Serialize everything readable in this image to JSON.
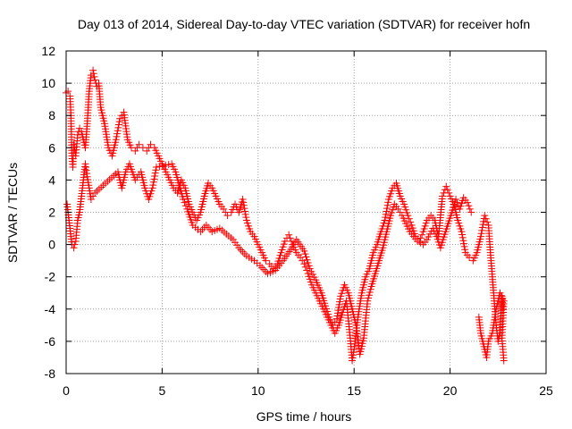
{
  "chart_data": {
    "type": "scatter",
    "title": "Day 013 of 2014, Sidereal Day-to-day VTEC variation (SDTVAR) for receiver hofn",
    "xlabel": "GPS time / hours",
    "ylabel": "SDTVAR / TECUs",
    "xlim": [
      0,
      25
    ],
    "ylim": [
      -8,
      12
    ],
    "xticks": [
      0,
      5,
      10,
      15,
      20,
      25
    ],
    "yticks": [
      -8,
      -6,
      -4,
      -2,
      0,
      2,
      4,
      6,
      8,
      10,
      12
    ],
    "grid": true,
    "marker": "+",
    "series": [
      {
        "name": "SDTVAR",
        "color": "#ff0000",
        "points": [
          [
            0.0,
            9.4
          ],
          [
            0.1,
            9.5
          ],
          [
            0.2,
            9.2
          ],
          [
            0.25,
            8.0
          ],
          [
            0.3,
            5.5
          ],
          [
            0.35,
            4.8
          ],
          [
            0.4,
            6.2
          ],
          [
            0.5,
            5.5
          ],
          [
            0.6,
            6.8
          ],
          [
            0.7,
            7.2
          ],
          [
            0.8,
            7.0
          ],
          [
            0.9,
            6.5
          ],
          [
            1.0,
            6.0
          ],
          [
            1.1,
            7.5
          ],
          [
            1.2,
            9.5
          ],
          [
            1.3,
            10.5
          ],
          [
            1.4,
            10.8
          ],
          [
            1.5,
            10.2
          ],
          [
            1.6,
            9.8
          ],
          [
            1.7,
            10.0
          ],
          [
            1.8,
            8.5
          ],
          [
            2.0,
            7.5
          ],
          [
            2.2,
            6.0
          ],
          [
            2.4,
            5.5
          ],
          [
            2.6,
            6.5
          ],
          [
            2.8,
            7.8
          ],
          [
            3.0,
            8.2
          ],
          [
            3.2,
            6.5
          ],
          [
            3.4,
            6.0
          ],
          [
            3.6,
            5.8
          ],
          [
            3.8,
            6.2
          ],
          [
            4.0,
            6.0
          ],
          [
            4.2,
            5.8
          ],
          [
            4.4,
            6.2
          ],
          [
            4.6,
            6.0
          ],
          [
            4.8,
            5.5
          ],
          [
            5.0,
            5.0
          ],
          [
            5.2,
            4.5
          ],
          [
            5.4,
            4.0
          ],
          [
            5.6,
            3.5
          ],
          [
            5.8,
            3.2
          ],
          [
            6.0,
            4.0
          ],
          [
            6.2,
            3.5
          ],
          [
            6.4,
            2.5
          ],
          [
            6.6,
            2.0
          ],
          [
            6.8,
            1.5
          ],
          [
            7.0,
            2.0
          ],
          [
            7.2,
            3.0
          ],
          [
            7.4,
            3.8
          ],
          [
            7.6,
            3.5
          ],
          [
            7.8,
            3.0
          ],
          [
            8.0,
            2.5
          ],
          [
            8.2,
            2.2
          ],
          [
            8.4,
            1.8
          ],
          [
            8.6,
            2.0
          ],
          [
            8.8,
            2.5
          ],
          [
            9.0,
            2.0
          ],
          [
            9.2,
            2.8
          ],
          [
            9.4,
            1.5
          ],
          [
            9.6,
            0.8
          ],
          [
            9.8,
            0.5
          ],
          [
            10.0,
            0.0
          ],
          [
            10.2,
            -0.5
          ],
          [
            10.4,
            -1.0
          ],
          [
            10.6,
            -1.2
          ],
          [
            10.8,
            -1.5
          ],
          [
            11.0,
            -1.2
          ],
          [
            11.2,
            -0.5
          ],
          [
            11.4,
            0.2
          ],
          [
            11.6,
            0.6
          ],
          [
            11.8,
            0.0
          ],
          [
            12.0,
            -0.5
          ],
          [
            12.2,
            -0.8
          ],
          [
            12.4,
            -1.2
          ],
          [
            12.6,
            -1.8
          ],
          [
            12.8,
            -2.5
          ],
          [
            13.0,
            -3.0
          ],
          [
            13.2,
            -3.5
          ],
          [
            13.4,
            -4.0
          ],
          [
            13.6,
            -4.5
          ],
          [
            13.8,
            -5.0
          ],
          [
            14.0,
            -5.5
          ],
          [
            14.2,
            -5.0
          ],
          [
            14.4,
            -4.2
          ],
          [
            14.6,
            -3.5
          ],
          [
            14.8,
            -5.8
          ],
          [
            14.9,
            -7.2
          ],
          [
            15.0,
            -6.5
          ],
          [
            15.2,
            -4.5
          ],
          [
            15.4,
            -3.0
          ],
          [
            15.6,
            -2.0
          ],
          [
            15.8,
            -1.5
          ],
          [
            16.0,
            -0.5
          ],
          [
            16.2,
            0.0
          ],
          [
            16.4,
            0.8
          ],
          [
            16.6,
            1.5
          ],
          [
            16.8,
            2.8
          ],
          [
            17.0,
            3.5
          ],
          [
            17.2,
            3.8
          ],
          [
            17.4,
            3.0
          ],
          [
            17.6,
            2.5
          ],
          [
            17.8,
            1.8
          ],
          [
            18.0,
            1.2
          ],
          [
            18.2,
            0.5
          ],
          [
            18.4,
            0.2
          ],
          [
            18.6,
            0.8
          ],
          [
            18.8,
            1.5
          ],
          [
            19.0,
            1.8
          ],
          [
            19.2,
            1.5
          ],
          [
            19.4,
            0.5
          ],
          [
            19.6,
            3.0
          ],
          [
            19.8,
            3.6
          ],
          [
            20.0,
            3.0
          ],
          [
            20.2,
            2.5
          ],
          [
            20.4,
            1.5
          ],
          [
            20.6,
            0.8
          ],
          [
            20.8,
            -0.5
          ],
          [
            21.0,
            -0.8
          ],
          [
            21.2,
            -1.0
          ],
          [
            21.4,
            -0.5
          ],
          [
            21.6,
            0.5
          ],
          [
            21.8,
            1.8
          ],
          [
            22.0,
            1.2
          ],
          [
            22.1,
            -0.5
          ],
          [
            22.2,
            -2.0
          ],
          [
            22.3,
            -3.5
          ],
          [
            22.4,
            -5.0
          ],
          [
            22.5,
            -6.0
          ],
          [
            22.6,
            -5.5
          ],
          [
            22.7,
            -3.2
          ],
          [
            22.75,
            -4.0
          ],
          [
            0.05,
            2.5
          ],
          [
            0.2,
            1.0
          ],
          [
            0.3,
            0.0
          ],
          [
            0.4,
            -0.2
          ],
          [
            0.5,
            0.2
          ],
          [
            0.6,
            1.5
          ],
          [
            0.7,
            2.0
          ],
          [
            0.8,
            3.0
          ],
          [
            0.9,
            4.0
          ],
          [
            1.0,
            5.0
          ],
          [
            1.1,
            4.2
          ],
          [
            1.2,
            3.5
          ],
          [
            1.3,
            2.8
          ],
          [
            1.5,
            3.2
          ],
          [
            2.7,
            4.5
          ],
          [
            2.8,
            4.0
          ],
          [
            2.9,
            3.5
          ],
          [
            3.1,
            4.5
          ],
          [
            3.3,
            5.0
          ],
          [
            3.6,
            4.0
          ],
          [
            3.9,
            4.5
          ],
          [
            4.1,
            3.5
          ],
          [
            4.3,
            2.8
          ],
          [
            4.5,
            3.5
          ],
          [
            4.7,
            4.8
          ],
          [
            5.5,
            5.0
          ],
          [
            5.7,
            4.5
          ],
          [
            6.1,
            2.8
          ],
          [
            6.3,
            2.2
          ],
          [
            6.6,
            1.2
          ],
          [
            7.0,
            0.8
          ],
          [
            7.3,
            1.2
          ],
          [
            7.6,
            0.8
          ],
          [
            8.0,
            1.0
          ],
          [
            8.7,
            0.3
          ],
          [
            9.0,
            -0.2
          ],
          [
            9.4,
            -0.7
          ],
          [
            9.8,
            -1.0
          ],
          [
            10.1,
            -1.3
          ],
          [
            10.5,
            -1.8
          ],
          [
            10.9,
            -1.6
          ],
          [
            11.3,
            -1.0
          ],
          [
            11.7,
            -0.3
          ],
          [
            12.0,
            0.3
          ],
          [
            12.4,
            -0.4
          ],
          [
            12.7,
            -1.5
          ],
          [
            13.0,
            -2.2
          ],
          [
            13.3,
            -3.0
          ],
          [
            13.5,
            -3.8
          ],
          [
            13.7,
            -4.5
          ],
          [
            13.9,
            -5.0
          ],
          [
            14.1,
            -4.6
          ],
          [
            14.3,
            -3.2
          ],
          [
            14.5,
            -2.5
          ],
          [
            14.7,
            -3.0
          ],
          [
            14.9,
            -4.0
          ],
          [
            15.1,
            -5.0
          ],
          [
            15.3,
            -6.8
          ],
          [
            15.5,
            -5.8
          ],
          [
            15.7,
            -3.5
          ],
          [
            15.9,
            -2.6
          ],
          [
            16.1,
            -1.8
          ],
          [
            16.3,
            -1.0
          ],
          [
            16.5,
            -0.2
          ],
          [
            16.7,
            0.8
          ],
          [
            16.9,
            1.8
          ],
          [
            17.1,
            2.5
          ],
          [
            17.3,
            2.2
          ],
          [
            17.5,
            1.8
          ],
          [
            17.7,
            1.3
          ],
          [
            17.9,
            0.8
          ],
          [
            18.1,
            0.5
          ],
          [
            18.3,
            0.2
          ],
          [
            18.6,
            0.0
          ],
          [
            18.8,
            0.3
          ],
          [
            19.1,
            1.0
          ],
          [
            19.3,
            0.5
          ],
          [
            19.5,
            -0.2
          ],
          [
            20.3,
            2.8
          ],
          [
            20.5,
            2.2
          ],
          [
            20.7,
            2.9
          ],
          [
            20.9,
            2.6
          ],
          [
            21.1,
            2.0
          ],
          [
            21.5,
            -4.5
          ],
          [
            21.6,
            -5.5
          ],
          [
            21.7,
            -6.0
          ],
          [
            21.8,
            -6.5
          ],
          [
            21.9,
            -7.0
          ],
          [
            22.0,
            -6.0
          ],
          [
            22.2,
            -5.5
          ],
          [
            22.4,
            -4.0
          ],
          [
            22.6,
            -3.0
          ],
          [
            22.8,
            -3.5
          ],
          [
            22.7,
            -5.8
          ],
          [
            22.75,
            -6.5
          ],
          [
            22.8,
            -7.2
          ]
        ]
      }
    ]
  }
}
